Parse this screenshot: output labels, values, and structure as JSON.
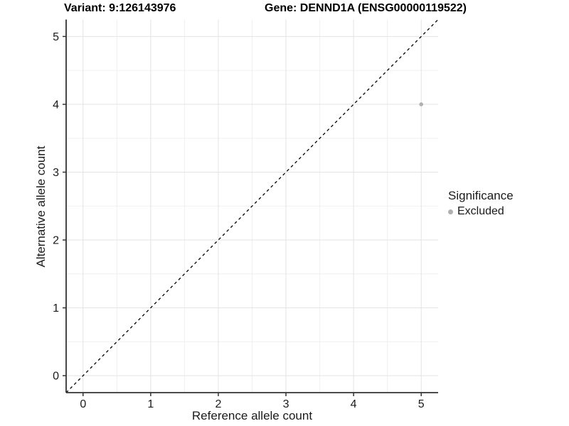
{
  "chart_data": {
    "type": "scatter",
    "title_variant": "Variant: 9:126143976",
    "title_gene": "Gene: DENND1A (ENSG00000119522)",
    "xlabel": "Reference allele count",
    "ylabel": "Alternative allele count",
    "xlim": [
      -0.25,
      5.25
    ],
    "ylim": [
      -0.25,
      5.25
    ],
    "xticks": [
      0,
      1,
      2,
      3,
      4,
      5
    ],
    "yticks": [
      0,
      1,
      2,
      3,
      4,
      5
    ],
    "grid": {
      "major": true,
      "minor": true,
      "minor_step": 0.5,
      "major_color": "#e3e3e3",
      "minor_color": "#f0f0f0"
    },
    "reference_line": {
      "type": "identity y=x",
      "style": "dashed",
      "color": "#000000"
    },
    "series": [
      {
        "name": "Excluded",
        "color": "#b0b0b0",
        "points": [
          {
            "x": 5,
            "y": 4
          }
        ]
      }
    ],
    "legend": {
      "title": "Significance",
      "position": "right",
      "items": [
        {
          "label": "Excluded",
          "color": "#b0b0b0",
          "marker": "circle"
        }
      ]
    },
    "axis_color": "#333333",
    "tick_label_color": "#1a1a1a",
    "background": "#ffffff"
  }
}
